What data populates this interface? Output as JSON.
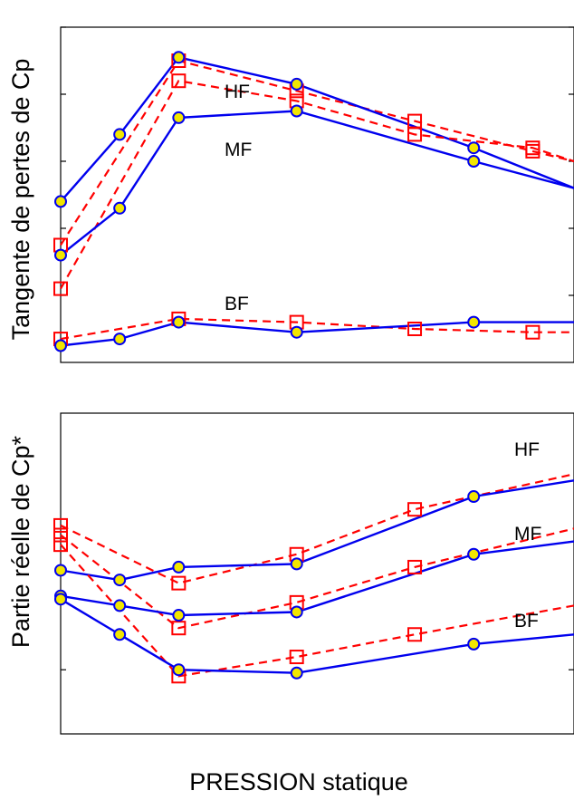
{
  "chart_data": [
    {
      "type": "line",
      "ylabel": "Tangente de pertes de Cp",
      "xlabel": "",
      "x": [
        0,
        1,
        2,
        4,
        6,
        8
      ],
      "xlim": [
        0,
        8.7
      ],
      "ylim": [
        0,
        100
      ],
      "yticks": [
        20,
        40,
        60,
        80,
        100
      ],
      "grid": false,
      "series": [
        {
          "name": "HF",
          "style": "dashed",
          "marker": "square",
          "color": "#ff0000",
          "x": [
            0,
            2,
            4,
            6,
            8,
            8.7
          ],
          "values": [
            35,
            90,
            81,
            72,
            63,
            60
          ]
        },
        {
          "name": "",
          "style": "solid",
          "marker": "circle",
          "color": "#0000ee",
          "x": [
            0,
            1,
            2,
            4,
            7,
            8.7
          ],
          "values": [
            48,
            68,
            91,
            83,
            64,
            52
          ]
        },
        {
          "name": "MF",
          "style": "dashed",
          "marker": "square",
          "color": "#ff0000",
          "x": [
            0,
            2,
            4,
            6,
            8,
            8.7
          ],
          "values": [
            22,
            84,
            78,
            68,
            64,
            60
          ]
        },
        {
          "name": "",
          "style": "solid",
          "marker": "circle",
          "color": "#0000ee",
          "x": [
            0,
            1,
            2,
            4,
            7,
            8.7
          ],
          "values": [
            32,
            46,
            73,
            75,
            60,
            52
          ]
        },
        {
          "name": "BF",
          "style": "dashed",
          "marker": "square",
          "color": "#ff0000",
          "x": [
            0,
            2,
            4,
            6,
            8,
            8.7
          ],
          "values": [
            7,
            13,
            12,
            10,
            9,
            9
          ]
        },
        {
          "name": "",
          "style": "solid",
          "marker": "circle",
          "color": "#0000ee",
          "x": [
            0,
            1,
            2,
            4,
            7,
            8.7
          ],
          "values": [
            5,
            7,
            12,
            9,
            12,
            12
          ]
        }
      ]
    },
    {
      "type": "line",
      "ylabel": "Partie réelle de Cp*",
      "xlabel": "PRESSION statique",
      "x": [
        0,
        1,
        2,
        4,
        6,
        8
      ],
      "xlim": [
        0,
        8.7
      ],
      "ylim": [
        0,
        100
      ],
      "yticks": [
        20,
        60
      ],
      "grid": false,
      "series": [
        {
          "name": "HF",
          "style": "dashed",
          "marker": "square",
          "color": "#ff0000",
          "x": [
            0,
            2,
            4,
            6,
            8.7
          ],
          "values": [
            65,
            47,
            56,
            70,
            81
          ]
        },
        {
          "name": "",
          "style": "solid",
          "marker": "circle",
          "color": "#0000ee",
          "x": [
            0,
            1,
            2,
            4,
            7,
            8.7
          ],
          "values": [
            51,
            48,
            52,
            53,
            74,
            79
          ]
        },
        {
          "name": "MF",
          "style": "dashed",
          "marker": "square",
          "color": "#ff0000",
          "x": [
            0,
            2,
            4,
            6,
            8.7
          ],
          "values": [
            62,
            33,
            41,
            52,
            64
          ]
        },
        {
          "name": "",
          "style": "solid",
          "marker": "circle",
          "color": "#0000ee",
          "x": [
            0,
            1,
            2,
            4,
            7,
            8.7
          ],
          "values": [
            43,
            40,
            37,
            38,
            56,
            60
          ]
        },
        {
          "name": "BF",
          "style": "dashed",
          "marker": "square",
          "color": "#ff0000",
          "x": [
            0,
            2,
            4,
            6,
            8.7
          ],
          "values": [
            59,
            18,
            24,
            31,
            40
          ]
        },
        {
          "name": "",
          "style": "solid",
          "marker": "circle",
          "color": "#0000ee",
          "x": [
            0,
            1,
            2,
            4,
            7,
            8.7
          ],
          "values": [
            42,
            31,
            20,
            19,
            28,
            31
          ]
        }
      ]
    }
  ]
}
